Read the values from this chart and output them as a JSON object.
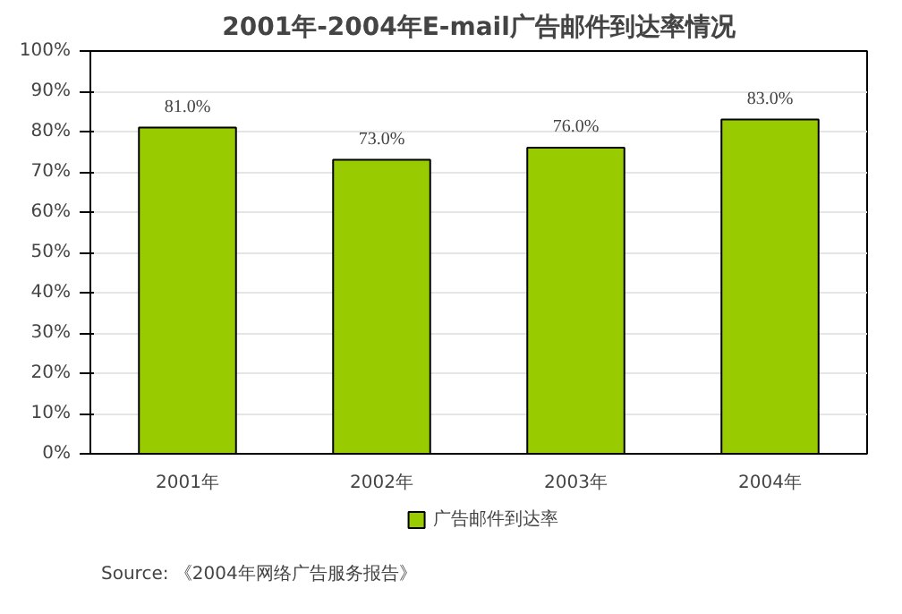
{
  "chart_data": {
    "type": "bar",
    "title": "2001年-2004年E-mail广告邮件到达率情况",
    "categories": [
      "2001年",
      "2002年",
      "2003年",
      "2004年"
    ],
    "series": [
      {
        "name": "广告邮件到达率",
        "color": "#99cc00",
        "values": [
          81,
          73,
          76,
          83
        ],
        "value_labels": [
          "81.0%",
          "73.0%",
          "76.0%",
          "83.0%"
        ]
      }
    ],
    "ylim": [
      0,
      100
    ],
    "yticks": [
      {
        "value": 0,
        "label": "0%"
      },
      {
        "value": 10,
        "label": "10%"
      },
      {
        "value": 20,
        "label": "20%"
      },
      {
        "value": 30,
        "label": "30%"
      },
      {
        "value": 40,
        "label": "40%"
      },
      {
        "value": 50,
        "label": "50%"
      },
      {
        "value": 60,
        "label": "60%"
      },
      {
        "value": 70,
        "label": "70%"
      },
      {
        "value": 80,
        "label": "80%"
      },
      {
        "value": 90,
        "label": "90%"
      },
      {
        "value": 100,
        "label": "100%"
      }
    ],
    "grid": "y",
    "legend": "bottom",
    "annotations": [
      "Source: 《2004年网络广告服务报告》"
    ]
  }
}
